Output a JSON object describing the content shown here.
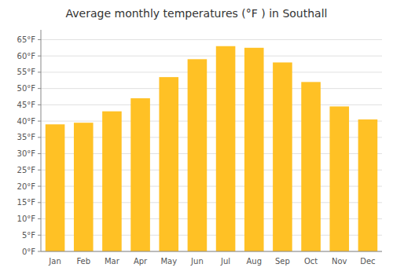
{
  "chart_data": {
    "type": "bar",
    "title": "Average monthly temperatures (°F ) in Southall",
    "categories": [
      "Jan",
      "Feb",
      "Mar",
      "Apr",
      "May",
      "Jun",
      "Jul",
      "Aug",
      "Sep",
      "Oct",
      "Nov",
      "Dec"
    ],
    "values": [
      39,
      39.5,
      43,
      47,
      53.5,
      59,
      63,
      62.5,
      58,
      52,
      44.5,
      40.5
    ],
    "color": "#FFC125",
    "ylim": [
      0,
      68
    ],
    "yticks": [
      {
        "value": 0,
        "label": "0°F"
      },
      {
        "value": 5,
        "label": "5°F"
      },
      {
        "value": 10,
        "label": "10°F"
      },
      {
        "value": 15,
        "label": "15°F"
      },
      {
        "value": 20,
        "label": "20°F"
      },
      {
        "value": 25,
        "label": "25°F"
      },
      {
        "value": 30,
        "label": "30°F"
      },
      {
        "value": 35,
        "label": "35°F"
      },
      {
        "value": 40,
        "label": "40°F"
      },
      {
        "value": 45,
        "label": "45°F"
      },
      {
        "value": 50,
        "label": "50°F"
      },
      {
        "value": 55,
        "label": "55°F"
      },
      {
        "value": 60,
        "label": "60°F"
      },
      {
        "value": 65,
        "label": "65°F"
      }
    ],
    "grid": true
  }
}
